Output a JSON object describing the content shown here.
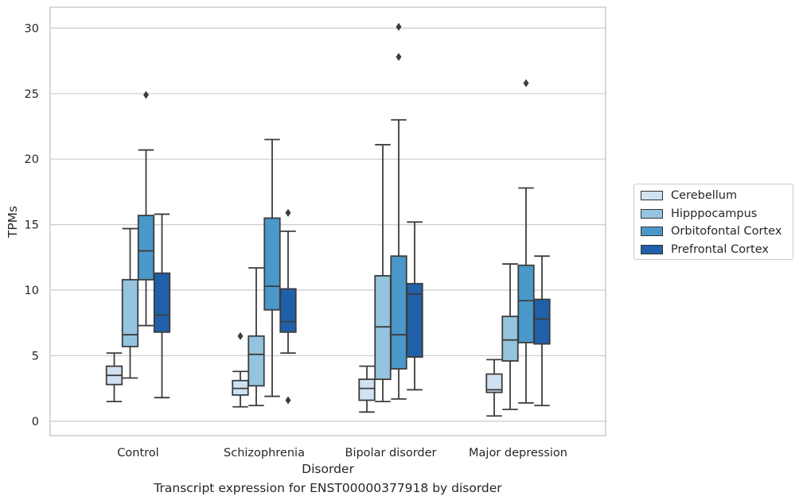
{
  "chart_data": {
    "type": "box",
    "xlabel": "Disorder",
    "ylabel": "TPMs",
    "caption": "Transcript expression for ENST00000377918 by disorder",
    "categories": [
      "Control",
      "Schizophrenia",
      "Bipolar disorder",
      "Major depression"
    ],
    "ylim": [
      -1.1,
      31.6
    ],
    "yticks": [
      0,
      5,
      10,
      15,
      20,
      25,
      30
    ],
    "grid": "horizontal",
    "legend_position": "right",
    "series": [
      {
        "name": "Cerebellum",
        "color": "#d0e1f2",
        "boxes": [
          {
            "whisker_low": 1.5,
            "q1": 2.8,
            "median": 3.5,
            "q3": 4.2,
            "whisker_high": 5.2,
            "outliers": []
          },
          {
            "whisker_low": 1.1,
            "q1": 2.0,
            "median": 2.5,
            "q3": 3.1,
            "whisker_high": 3.8,
            "outliers": [
              6.5
            ]
          },
          {
            "whisker_low": 0.7,
            "q1": 1.6,
            "median": 2.5,
            "q3": 3.2,
            "whisker_high": 4.2,
            "outliers": []
          },
          {
            "whisker_low": 0.4,
            "q1": 2.2,
            "median": 2.4,
            "q3": 3.6,
            "whisker_high": 4.7,
            "outliers": []
          }
        ]
      },
      {
        "name": "Hipppocampus",
        "color": "#94c4df",
        "boxes": [
          {
            "whisker_low": 3.3,
            "q1": 5.7,
            "median": 6.6,
            "q3": 10.8,
            "whisker_high": 14.7,
            "outliers": []
          },
          {
            "whisker_low": 1.2,
            "q1": 2.7,
            "median": 5.1,
            "q3": 6.5,
            "whisker_high": 11.7,
            "outliers": []
          },
          {
            "whisker_low": 1.5,
            "q1": 3.2,
            "median": 7.2,
            "q3": 11.1,
            "whisker_high": 21.1,
            "outliers": []
          },
          {
            "whisker_low": 0.9,
            "q1": 4.6,
            "median": 6.2,
            "q3": 8.0,
            "whisker_high": 12.0,
            "outliers": []
          }
        ]
      },
      {
        "name": "Orbitofontal Cortex",
        "color": "#4a98c9",
        "boxes": [
          {
            "whisker_low": 7.3,
            "q1": 10.8,
            "median": 13.0,
            "q3": 15.7,
            "whisker_high": 20.7,
            "outliers": [
              24.9
            ]
          },
          {
            "whisker_low": 1.9,
            "q1": 8.5,
            "median": 10.3,
            "q3": 15.5,
            "whisker_high": 21.5,
            "outliers": []
          },
          {
            "whisker_low": 1.7,
            "q1": 4.0,
            "median": 6.6,
            "q3": 12.6,
            "whisker_high": 23.0,
            "outliers": [
              27.8,
              30.1
            ]
          },
          {
            "whisker_low": 1.4,
            "q1": 6.0,
            "median": 9.2,
            "q3": 11.9,
            "whisker_high": 17.8,
            "outliers": [
              25.8
            ]
          }
        ]
      },
      {
        "name": "Prefrontal Cortex",
        "color": "#2060a9",
        "boxes": [
          {
            "whisker_low": 1.8,
            "q1": 6.8,
            "median": 8.1,
            "q3": 11.3,
            "whisker_high": 15.8,
            "outliers": []
          },
          {
            "whisker_low": 5.2,
            "q1": 6.8,
            "median": 7.6,
            "q3": 10.1,
            "whisker_high": 14.5,
            "outliers": [
              1.6,
              15.9
            ]
          },
          {
            "whisker_low": 2.4,
            "q1": 4.9,
            "median": 9.7,
            "q3": 10.5,
            "whisker_high": 15.2,
            "outliers": []
          },
          {
            "whisker_low": 1.2,
            "q1": 5.9,
            "median": 7.8,
            "q3": 9.3,
            "whisker_high": 12.6,
            "outliers": []
          }
        ]
      }
    ]
  }
}
